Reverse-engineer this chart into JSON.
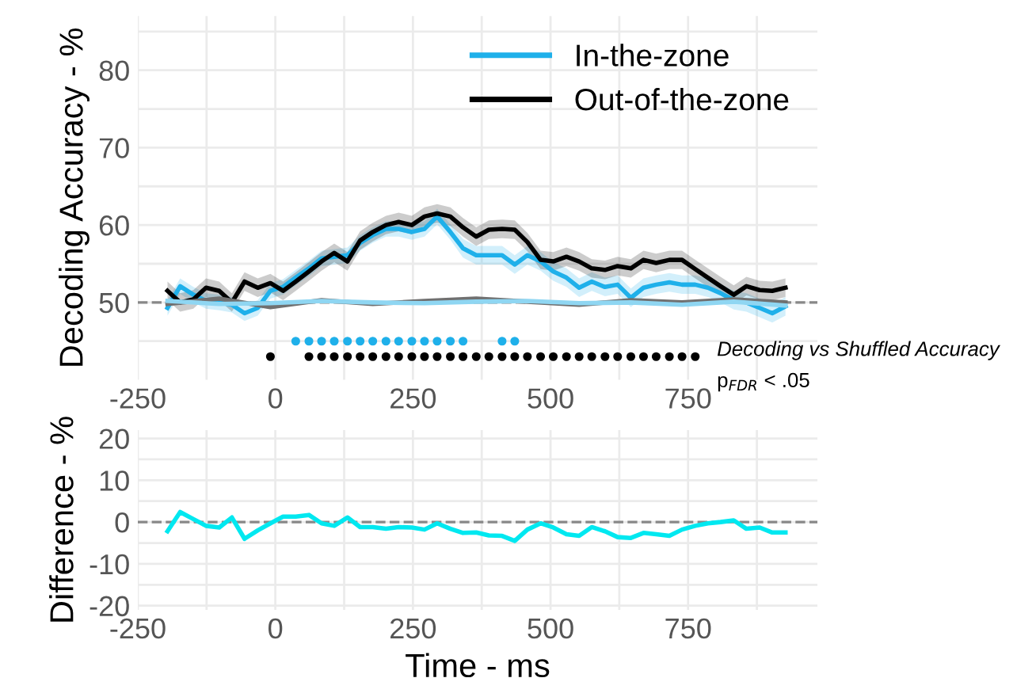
{
  "chart_data": [
    {
      "type": "line",
      "ylabel": "Decoding Accuracy - %",
      "xlim": [
        -250,
        985
      ],
      "ylim": [
        40,
        87
      ],
      "xticks": [
        -250,
        {
          "value": -125,
          "label": null
        },
        0,
        {
          "value": 125,
          "label": null
        },
        250,
        {
          "value": 375,
          "label": null
        },
        500,
        {
          "value": 625,
          "label": null
        },
        750,
        {
          "value": 875,
          "label": null
        }
      ],
      "yticks": [
        {
          "value": 45,
          "label": null
        },
        50,
        {
          "value": 55,
          "label": null
        },
        60,
        {
          "value": 65,
          "label": null
        },
        70,
        {
          "value": 75,
          "label": null
        },
        80,
        {
          "value": 85,
          "label": null
        }
      ],
      "grid": true,
      "legend": "top right",
      "line_style": "solid",
      "ref_lines": [
        {
          "axis": "y",
          "value": 50,
          "color": "#888888",
          "line_style": "dashed"
        }
      ],
      "annotations": [
        "Decoding vs Shuffled Accuracy",
        "p$_{FDR}$ < .05"
      ],
      "series": [
        {
          "name": "In-the-zone",
          "color": "#1fb0ea",
          "x": [
            -196,
            -173,
            -149,
            -126,
            -102,
            -79,
            -56,
            -32,
            -9,
            14,
            37,
            61,
            84,
            107,
            131,
            154,
            177,
            201,
            224,
            248,
            271,
            294,
            318,
            341,
            365,
            388,
            412,
            435,
            458,
            482,
            505,
            529,
            552,
            575,
            599,
            622,
            646,
            669,
            692,
            716,
            739,
            763,
            786,
            809,
            833,
            856,
            880,
            903,
            927
          ],
          "values": [
            49.3,
            52.1,
            51,
            50.2,
            50,
            49.7,
            48.6,
            49.3,
            51.5,
            52,
            53.2,
            54.4,
            55.7,
            55.9,
            56.1,
            57.7,
            58.7,
            59.5,
            59.5,
            59.1,
            59.5,
            61.1,
            59.1,
            57,
            56.1,
            56.1,
            56.1,
            54.9,
            56.1,
            55.3,
            54,
            53.2,
            51.9,
            52.7,
            52,
            52.3,
            50.6,
            51.9,
            52.3,
            52.6,
            52.3,
            52.3,
            51.9,
            51.2,
            50.3,
            50,
            49.3,
            48.6,
            49.5
          ],
          "lower": [
            48.3,
            51.1,
            50,
            49.2,
            49,
            48.7,
            47.6,
            48.3,
            50.5,
            51,
            52.2,
            53.4,
            54.7,
            54.9,
            55.1,
            56.7,
            57.7,
            58.5,
            58.5,
            58.1,
            58.5,
            60.1,
            58.1,
            55.8,
            54.9,
            54.9,
            54.9,
            53.7,
            54.9,
            54.1,
            52.8,
            52,
            50.7,
            51.5,
            50.8,
            51.1,
            49.4,
            50.7,
            51.1,
            51.4,
            51.1,
            51.1,
            50.7,
            50,
            49.1,
            48.8,
            48.1,
            47.4,
            48.3
          ],
          "upper": [
            50.3,
            53.1,
            52,
            51.2,
            51,
            50.7,
            49.6,
            50.3,
            52.5,
            53,
            54.2,
            55.4,
            56.7,
            56.9,
            57.1,
            58.7,
            59.7,
            60.5,
            60.5,
            60.1,
            60.5,
            62.1,
            60.1,
            58.2,
            57.3,
            57.3,
            57.3,
            56.1,
            57.3,
            56.5,
            55.2,
            54.4,
            53.1,
            53.9,
            53.2,
            53.5,
            51.8,
            53.1,
            53.5,
            53.8,
            53.5,
            53.5,
            53.1,
            52.4,
            51.5,
            51.2,
            50.5,
            49.8,
            50.7
          ]
        },
        {
          "name": "Out-of-the-zone",
          "color": "#000000",
          "x": [
            -196,
            -173,
            -149,
            -126,
            -102,
            -79,
            -56,
            -32,
            -9,
            14,
            37,
            61,
            84,
            107,
            131,
            154,
            177,
            201,
            224,
            248,
            271,
            294,
            318,
            341,
            365,
            388,
            412,
            435,
            458,
            482,
            505,
            529,
            552,
            575,
            599,
            622,
            646,
            669,
            692,
            716,
            739,
            763,
            786,
            809,
            833,
            856,
            880,
            903,
            927
          ],
          "values": [
            51.5,
            50,
            50.4,
            51.9,
            51.5,
            50,
            52.7,
            51.9,
            52.5,
            51.5,
            52.7,
            54,
            55.3,
            56.4,
            55.3,
            58,
            59.1,
            60,
            60.4,
            60,
            61.1,
            61.5,
            61.1,
            59.7,
            58.5,
            59.4,
            59.5,
            59.4,
            57.8,
            55.5,
            55.3,
            55.9,
            55.3,
            54.4,
            54.2,
            54.7,
            54.4,
            55.5,
            55.1,
            55.5,
            55.5,
            54.3,
            53.2,
            52.1,
            51,
            52.1,
            51.6,
            51.5,
            51.9
          ],
          "lower": [
            50.3,
            48.8,
            49.2,
            50.7,
            50.3,
            48.8,
            51.5,
            50.7,
            51.3,
            50.3,
            51.5,
            52.8,
            54.1,
            55.2,
            54.1,
            56.8,
            57.9,
            58.8,
            59.2,
            58.8,
            59.9,
            60.3,
            59.9,
            58.5,
            57.3,
            58.2,
            58.3,
            58.2,
            56.6,
            54.3,
            54.1,
            54.7,
            54.1,
            53.2,
            53,
            53.5,
            53.2,
            54.3,
            53.9,
            54.3,
            54.3,
            53.1,
            52,
            50.9,
            49.8,
            50.9,
            50.4,
            50.3,
            50.7
          ],
          "upper": [
            52.7,
            51.2,
            51.6,
            53.1,
            52.7,
            51.2,
            53.9,
            53.1,
            53.7,
            52.7,
            53.9,
            55.2,
            56.5,
            57.6,
            56.5,
            59.2,
            60.3,
            61.2,
            61.6,
            61.2,
            62.3,
            62.7,
            62.3,
            60.9,
            59.7,
            60.6,
            60.7,
            60.6,
            59,
            56.7,
            56.5,
            57.1,
            56.5,
            55.6,
            55.4,
            55.9,
            55.6,
            56.7,
            56.3,
            56.7,
            56.7,
            55.5,
            54.4,
            53.3,
            52.2,
            53.3,
            52.8,
            52.7,
            53.1
          ]
        },
        {
          "color": "#707070",
          "x": [
            -196,
            -102,
            -9,
            84,
            177,
            271,
            365,
            458,
            552,
            646,
            739,
            833,
            927
          ],
          "values": [
            49.8,
            50.5,
            49.4,
            50.3,
            49.8,
            50.2,
            50.5,
            50.1,
            49.7,
            50.3,
            50.0,
            50.4,
            50.0
          ]
        },
        {
          "color": "#8fd6f2",
          "x": [
            -196,
            -102,
            -9,
            84,
            177,
            271,
            365,
            458,
            552,
            646,
            739,
            833,
            927
          ],
          "values": [
            50.2,
            49.8,
            49.9,
            50.2,
            50.0,
            49.9,
            50.1,
            50.2,
            49.9,
            50.0,
            49.7,
            50.1,
            49.6
          ]
        },
        {
          "type": "scatter",
          "marker": "circle",
          "color": "#1fb0ea",
          "x": [
            37,
            61,
            84,
            107,
            131,
            154,
            177,
            201,
            224,
            248,
            271,
            294,
            318,
            341,
            412,
            435
          ],
          "values": [
            45,
            45,
            45,
            45,
            45,
            45,
            45,
            45,
            45,
            45,
            45,
            45,
            45,
            45,
            45,
            45
          ]
        },
        {
          "type": "scatter",
          "marker": "circle",
          "color": "#000000",
          "x": [
            -9,
            61,
            84,
            107,
            131,
            154,
            177,
            201,
            224,
            248,
            271,
            294,
            318,
            341,
            365,
            388,
            412,
            435,
            458,
            482,
            505,
            529,
            552,
            575,
            599,
            622,
            646,
            669,
            692,
            716,
            739,
            763
          ],
          "values": [
            43,
            43,
            43,
            43,
            43,
            43,
            43,
            43,
            43,
            43,
            43,
            43,
            43,
            43,
            43,
            43,
            43,
            43,
            43,
            43,
            43,
            43,
            43,
            43,
            43,
            43,
            43,
            43,
            43,
            43,
            43,
            43
          ]
        }
      ]
    },
    {
      "type": "line",
      "xlabel": "Time - ms",
      "ylabel": "Difference - %",
      "xlim": [
        -250,
        985
      ],
      "ylim": [
        -21,
        22
      ],
      "xticks": [
        -250,
        {
          "value": -125,
          "label": null
        },
        0,
        {
          "value": 125,
          "label": null
        },
        250,
        {
          "value": 375,
          "label": null
        },
        500,
        {
          "value": 625,
          "label": null
        },
        750,
        {
          "value": 875,
          "label": null
        }
      ],
      "yticks": [
        -20,
        {
          "value": -15,
          "label": null
        },
        -10,
        {
          "value": -5,
          "label": null
        },
        0,
        {
          "value": 5,
          "label": null
        },
        10,
        {
          "value": 15,
          "label": null
        },
        20
      ],
      "grid": true,
      "marker": "none",
      "line_style": "solid",
      "ref_lines": [
        {
          "axis": "y",
          "value": 0,
          "color": "#888888",
          "line_style": "dashed"
        }
      ],
      "series": [
        {
          "color": "#00e8f0",
          "x": [
            -196,
            -173,
            -149,
            -126,
            -102,
            -79,
            -56,
            -32,
            -9,
            14,
            37,
            61,
            84,
            107,
            131,
            154,
            177,
            201,
            224,
            248,
            271,
            294,
            318,
            341,
            365,
            388,
            412,
            435,
            458,
            482,
            505,
            529,
            552,
            575,
            599,
            622,
            646,
            669,
            692,
            716,
            739,
            763,
            786,
            809,
            833,
            856,
            880,
            903,
            927
          ],
          "values": [
            -2.2,
            2.4,
            0.7,
            -0.9,
            -1.3,
            1.1,
            -4,
            -2,
            -0.3,
            1.3,
            1.3,
            1.7,
            -0.3,
            -0.9,
            1.1,
            -1.2,
            -1.2,
            -1.6,
            -1.2,
            -1.3,
            -1.8,
            -0.3,
            -1.6,
            -2.6,
            -2.5,
            -3.2,
            -3.3,
            -4.5,
            -1.8,
            -0.3,
            -1.3,
            -2.9,
            -3.3,
            -1.2,
            -2.2,
            -3.6,
            -3.8,
            -2.6,
            -2.9,
            -3.3,
            -1.8,
            -0.9,
            -0.3,
            0,
            0.4,
            -1.6,
            -1.3,
            -2.5,
            -2.5
          ]
        }
      ]
    }
  ]
}
